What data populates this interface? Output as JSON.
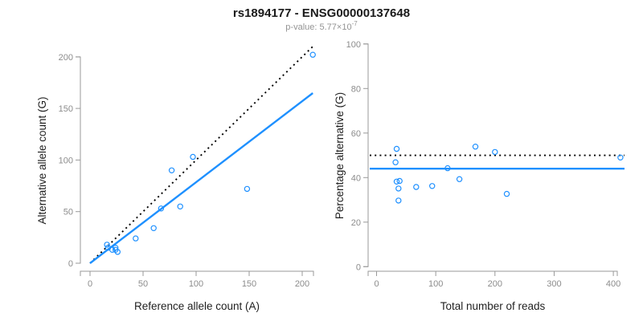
{
  "header": {
    "title": "rs1894177 - ENSG00000137648",
    "subtitle_base": "p-value: 5.77×10",
    "subtitle_exponent": "-7"
  },
  "colors": {
    "point_stroke": "#1E90FF",
    "fit_line": "#1E90FF",
    "expected_line": "#000000",
    "axis": "#999999",
    "tick_label": "#8c8c8c",
    "title": "#1a1a1a",
    "subtitle": "#949494"
  },
  "chart_data": [
    {
      "id": "left",
      "type": "scatter",
      "xlabel": "Reference allele count (A)",
      "ylabel": "Alternative allele count (G)",
      "xlim": [
        0,
        210
      ],
      "ylim": [
        0,
        210
      ],
      "xticks": [
        0,
        50,
        100,
        150,
        200
      ],
      "yticks": [
        0,
        50,
        100,
        150,
        200
      ],
      "grid": false,
      "legend": false,
      "points": [
        [
          16,
          18
        ],
        [
          17,
          15
        ],
        [
          21,
          13
        ],
        [
          24,
          15
        ],
        [
          24,
          13
        ],
        [
          26,
          11
        ],
        [
          43,
          24
        ],
        [
          60,
          34
        ],
        [
          67,
          53
        ],
        [
          77,
          90
        ],
        [
          85,
          55
        ],
        [
          97,
          103
        ],
        [
          148,
          72
        ],
        [
          210,
          202
        ]
      ],
      "lines": [
        {
          "name": "identity-expected-line",
          "style": "dotted",
          "color": "#000000",
          "slope": 1,
          "intercept": 0
        },
        {
          "name": "fitted-ratio-line",
          "style": "solid",
          "color": "#1E90FF",
          "slope": 0.785,
          "intercept": 0
        }
      ]
    },
    {
      "id": "right",
      "type": "scatter",
      "xlabel": "Total number of reads",
      "ylabel": "Percentage alternative (G)",
      "xlim": [
        0,
        418
      ],
      "ylim": [
        0,
        100
      ],
      "xticks": [
        0,
        100,
        200,
        300,
        400
      ],
      "yticks": [
        0,
        20,
        40,
        60,
        80,
        100
      ],
      "grid": false,
      "legend": false,
      "points": [
        [
          34,
          52.9
        ],
        [
          32,
          46.9
        ],
        [
          34,
          38.2
        ],
        [
          39,
          38.5
        ],
        [
          37,
          35.1
        ],
        [
          37,
          29.7
        ],
        [
          67,
          35.8
        ],
        [
          94,
          36.2
        ],
        [
          120,
          44.2
        ],
        [
          140,
          39.3
        ],
        [
          167,
          53.9
        ],
        [
          200,
          51.5
        ],
        [
          220,
          32.7
        ],
        [
          412,
          49.0
        ]
      ],
      "lines": [
        {
          "name": "expected-50-percent-line",
          "style": "dotted",
          "color": "#000000",
          "y": 50
        },
        {
          "name": "mean-percentage-line",
          "style": "solid",
          "color": "#1E90FF",
          "y": 44
        }
      ]
    }
  ]
}
